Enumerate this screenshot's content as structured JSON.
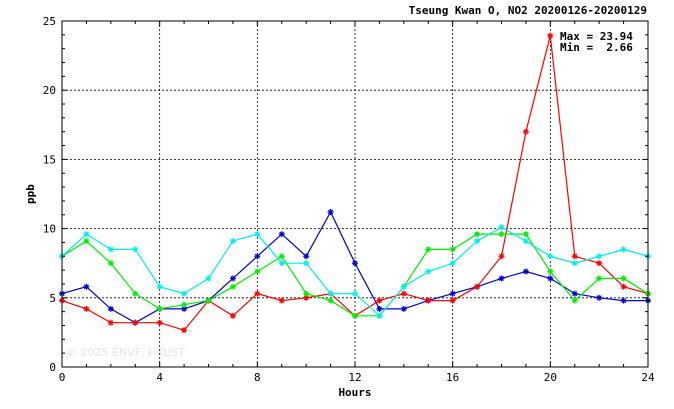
{
  "chart_data": {
    "type": "line",
    "title": "Tseung Kwan O, NO2 20200126-20200129",
    "xlabel": "Hours",
    "ylabel": "ppb",
    "xlim": [
      0,
      24
    ],
    "ylim": [
      0,
      25
    ],
    "xticks": [
      0,
      4,
      8,
      12,
      16,
      20,
      24
    ],
    "yticks": [
      0,
      5,
      10,
      15,
      20,
      25
    ],
    "grid": true,
    "annotation": {
      "max_text": "Max = 23.94",
      "min_text": "Min =  2.66"
    },
    "watermark": "© 2025 ENVF, HKUST",
    "x": [
      0,
      1,
      2,
      3,
      4,
      5,
      6,
      7,
      8,
      9,
      10,
      11,
      12,
      13,
      14,
      15,
      16,
      17,
      18,
      19,
      20,
      21,
      22,
      23,
      24
    ],
    "series": [
      {
        "color": "#0000cc",
        "values": [
          5.3,
          5.8,
          4.2,
          3.2,
          4.2,
          4.2,
          4.8,
          6.4,
          8.0,
          9.6,
          8.0,
          11.2,
          7.5,
          4.2,
          4.2,
          4.8,
          5.3,
          5.8,
          6.4,
          6.9,
          6.4,
          5.3,
          5.0,
          4.8,
          4.8
        ]
      },
      {
        "color": "#ff0000",
        "values": [
          4.8,
          4.2,
          3.2,
          3.2,
          3.2,
          2.66,
          4.8,
          3.7,
          5.3,
          4.8,
          5.0,
          5.3,
          3.7,
          4.8,
          5.3,
          4.8,
          4.8,
          5.8,
          8.0,
          17.0,
          23.94,
          8.0,
          7.5,
          5.8,
          5.3
        ]
      },
      {
        "color": "#00ee00",
        "values": [
          8.0,
          9.1,
          7.5,
          5.3,
          4.2,
          4.5,
          4.8,
          5.8,
          6.9,
          8.0,
          5.3,
          4.8,
          3.7,
          3.7,
          5.8,
          8.5,
          8.5,
          9.6,
          9.6,
          9.6,
          6.9,
          4.8,
          6.4,
          6.4,
          5.3
        ]
      },
      {
        "color": "#00eeee",
        "values": [
          8.0,
          9.6,
          8.5,
          8.5,
          5.8,
          5.3,
          6.4,
          9.1,
          9.6,
          7.5,
          7.5,
          5.3,
          5.3,
          3.7,
          5.8,
          6.9,
          7.5,
          9.1,
          10.1,
          9.1,
          8.0,
          7.5,
          8.0,
          8.5,
          8.0
        ]
      }
    ]
  }
}
